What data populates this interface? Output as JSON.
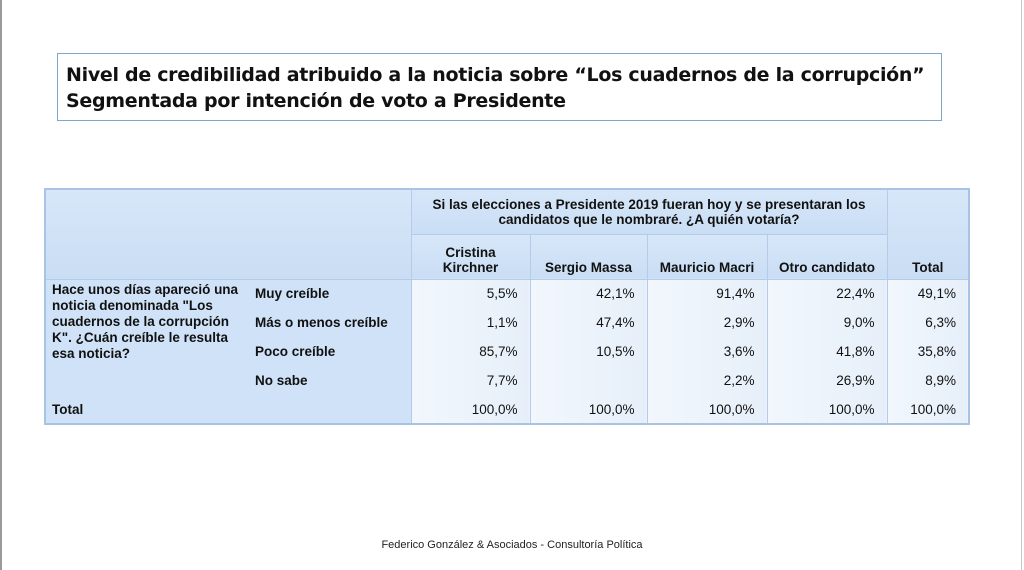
{
  "title": {
    "line1": "Nivel de credibilidad atribuido a la noticia sobre “Los cuadernos de la corrupción”",
    "line2": "Segmentada por intención de voto a Presidente"
  },
  "table": {
    "super_header": "Si las elecciones a Presidente 2019 fueran hoy y se presentaran los candidatos que le nombraré. ¿A quién votaría?",
    "columns": [
      "Cristina Kirchner",
      "Sergio Massa",
      "Mauricio Macri",
      "Otro candidato"
    ],
    "total_header": "Total",
    "question": "Hace unos días apareció una noticia denominada \"Los cuadernos de la corrupción K\". ¿Cuán creíble le resulta esa noticia?",
    "rows": [
      {
        "label": "Muy creíble",
        "values": [
          "5,5%",
          "42,1%",
          "91,4%",
          "22,4%",
          "49,1%"
        ]
      },
      {
        "label": "Más o menos creíble",
        "values": [
          "1,1%",
          "47,4%",
          "2,9%",
          "9,0%",
          "6,3%"
        ]
      },
      {
        "label": "Poco creíble",
        "values": [
          "85,7%",
          "10,5%",
          "3,6%",
          "41,8%",
          "35,8%"
        ]
      },
      {
        "label": "No sabe",
        "values": [
          "7,7%",
          "",
          "2,2%",
          "26,9%",
          "8,9%"
        ]
      }
    ],
    "total_row": {
      "label": "Total",
      "values": [
        "100,0%",
        "100,0%",
        "100,0%",
        "100,0%",
        "100,0%"
      ]
    }
  },
  "footer": "Federico González & Asociados - Consultoría Política"
}
